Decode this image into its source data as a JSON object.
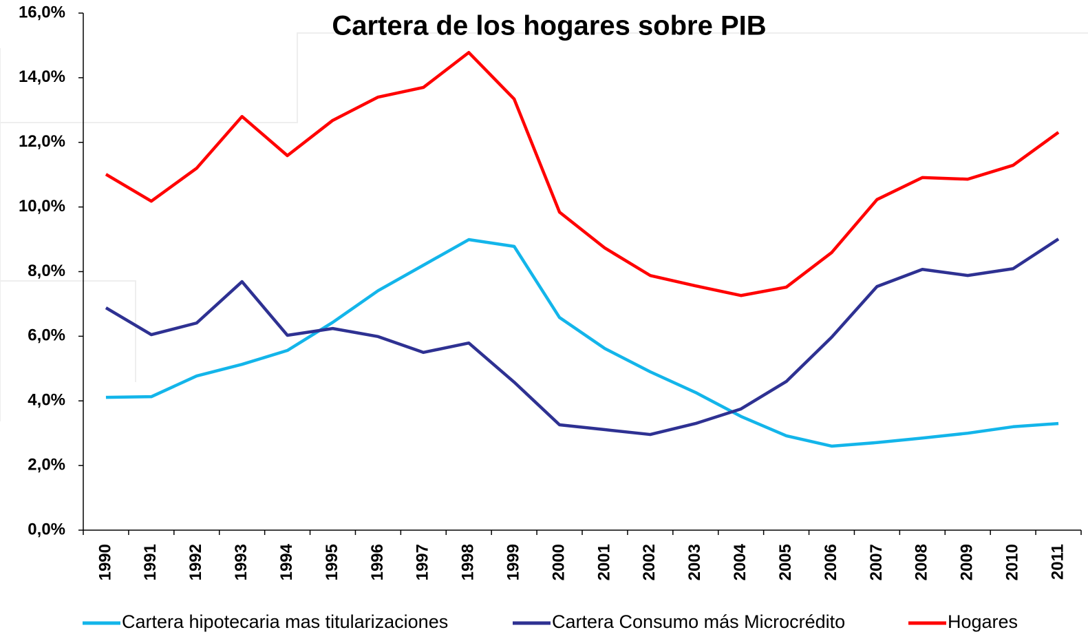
{
  "chart_data": {
    "type": "line",
    "title": "Cartera de los hogares sobre PIB",
    "categories": [
      "1990",
      "1991",
      "1992",
      "1993",
      "1994",
      "1995",
      "1996",
      "1997",
      "1998",
      "1999",
      "2000",
      "2001",
      "2002",
      "2003",
      "2004",
      "2005",
      "2006",
      "2007",
      "2008",
      "2009",
      "2010",
      "2011"
    ],
    "series": [
      {
        "name": "Cartera hipotecaria mas titularizaciones",
        "color": "#13b5ea",
        "values": [
          4.11,
          4.13,
          4.77,
          5.13,
          5.56,
          6.43,
          7.41,
          8.2,
          8.99,
          8.78,
          6.58,
          5.62,
          4.9,
          4.26,
          3.52,
          2.92,
          2.6,
          2.71,
          2.85,
          3.0,
          3.2,
          3.3
        ]
      },
      {
        "name": "Cartera Consumo más Microcrédito",
        "color": "#2e3192",
        "values": [
          6.88,
          6.05,
          6.41,
          7.69,
          6.03,
          6.24,
          5.99,
          5.5,
          5.79,
          4.58,
          3.26,
          3.11,
          2.96,
          3.3,
          3.75,
          4.6,
          5.97,
          7.54,
          8.07,
          7.88,
          8.09,
          9.01
        ]
      },
      {
        "name": "Hogares",
        "color": "#ff0000",
        "values": [
          11.01,
          10.18,
          11.2,
          12.8,
          11.59,
          12.68,
          13.4,
          13.7,
          14.78,
          13.34,
          9.84,
          8.73,
          7.88,
          7.56,
          7.26,
          7.52,
          8.59,
          10.23,
          10.91,
          10.86,
          11.29,
          12.31
        ]
      }
    ],
    "ylim": [
      0,
      16
    ],
    "yticks": [
      {
        "value": 0,
        "label": "0,0%"
      },
      {
        "value": 2,
        "label": "2,0%"
      },
      {
        "value": 4,
        "label": "4,0%"
      },
      {
        "value": 6,
        "label": "6,0%"
      },
      {
        "value": 8,
        "label": "8,0%"
      },
      {
        "value": 10,
        "label": "10,0%"
      },
      {
        "value": 12,
        "label": "12,0%"
      },
      {
        "value": 14,
        "label": "14,0%"
      },
      {
        "value": 16,
        "label": "16,0%"
      }
    ],
    "grid": false,
    "legend": "bottom"
  }
}
